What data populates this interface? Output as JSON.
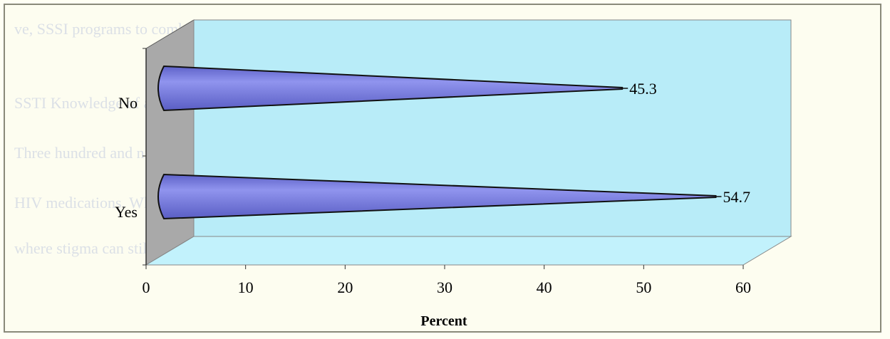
{
  "chart_data": {
    "type": "bar",
    "categories": [
      "No",
      "Yes"
    ],
    "values": [
      45.3,
      54.7
    ],
    "value_labels": [
      "45.3",
      "54.7"
    ],
    "xlabel": "Percent",
    "ylabel": "",
    "xlim": [
      0,
      60
    ],
    "xticks": [
      "0",
      "10",
      "20",
      "30",
      "40",
      "50",
      "60"
    ],
    "orientation": "horizontal",
    "bar_shape": "cone",
    "grid": false,
    "legend": "none"
  },
  "colors": {
    "bar_fill": "#7b7fe0",
    "back_wall": "#b8ecf8",
    "side_wall": "#a9a9a9",
    "floor": "#c2f2fc"
  }
}
